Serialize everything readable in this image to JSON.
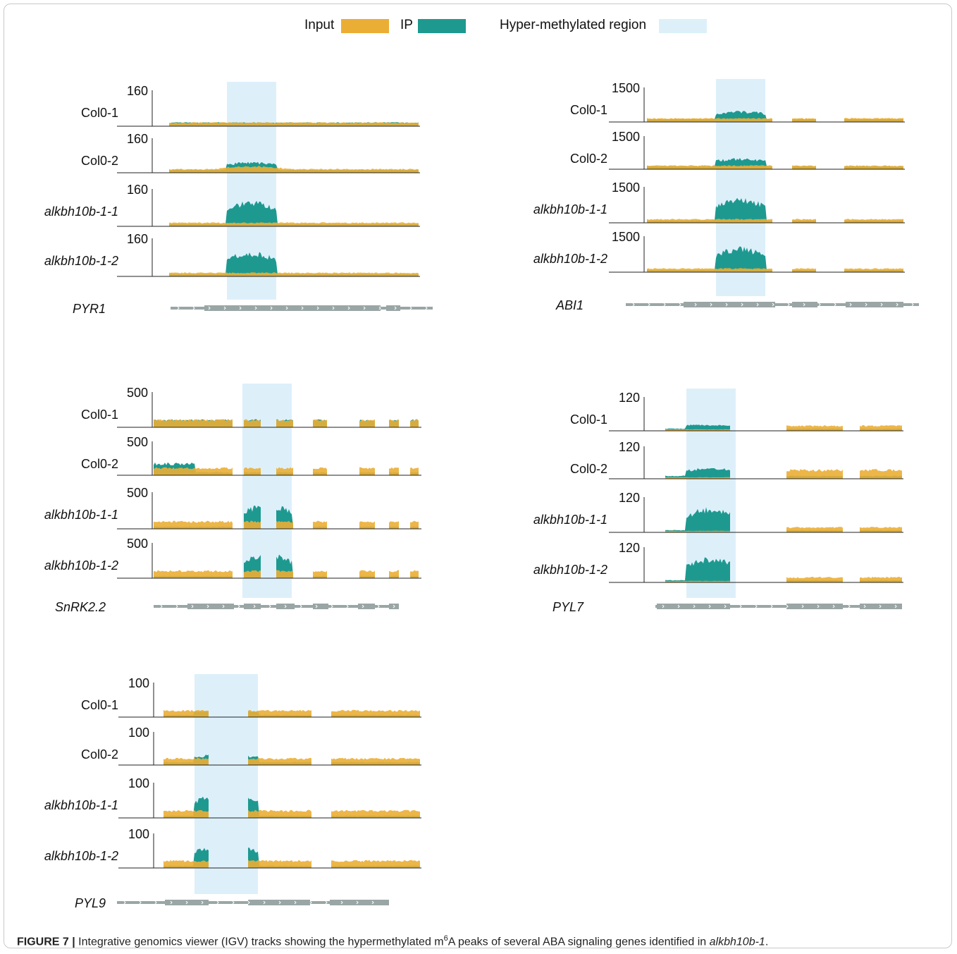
{
  "legend": {
    "input_label": "Input",
    "ip_label": "IP",
    "region_label": "Hyper-methylated region"
  },
  "colors": {
    "input": "#EBAE35",
    "ip": "#1E9990",
    "overlap": "#C9B06A",
    "region": "#DDF0FA",
    "gene_model": "#9AA6A5",
    "axis": "#222222"
  },
  "caption": {
    "figure_label": "FIGURE 7 |",
    "text_before_sup": "Integrative genomics viewer (IGV) tracks showing the hypermethylated m",
    "sup": "6",
    "text_after_sup": "A peaks of several ABA signaling genes identified in ",
    "gene_italic": "alkbh10b-1",
    "end": "."
  },
  "panels": [
    {
      "gene": "PYR1",
      "tracks": [
        {
          "label": "Col0-1",
          "italic": false,
          "ymax": "160",
          "input_profile": "low-flat",
          "ip_profile": "low-flat"
        },
        {
          "label": "Col0-2",
          "italic": false,
          "ymax": "160",
          "input_profile": "low-bump",
          "ip_profile": "moderate-in-region"
        },
        {
          "label": "alkbh10b-1-1",
          "italic": true,
          "ymax": "160",
          "input_profile": "low-flat",
          "ip_profile": "peak-in-region"
        },
        {
          "label": "alkbh10b-1-2",
          "italic": true,
          "ymax": "160",
          "input_profile": "low-flat",
          "ip_profile": "peak-in-region"
        }
      ]
    },
    {
      "gene": "ABI1",
      "tracks": [
        {
          "label": "Col0-1",
          "italic": false,
          "ymax": "1500",
          "input_profile": "low-flat",
          "ip_profile": "moderate-in-region"
        },
        {
          "label": "Col0-2",
          "italic": false,
          "ymax": "1500",
          "input_profile": "low-flat",
          "ip_profile": "moderate-in-region"
        },
        {
          "label": "alkbh10b-1-1",
          "italic": true,
          "ymax": "1500",
          "input_profile": "low-flat",
          "ip_profile": "peak-in-region"
        },
        {
          "label": "alkbh10b-1-2",
          "italic": true,
          "ymax": "1500",
          "input_profile": "low-flat",
          "ip_profile": "peak-in-region"
        }
      ]
    },
    {
      "gene": "SnRK2.2",
      "tracks": [
        {
          "label": "Col0-1",
          "italic": false,
          "ymax": "500",
          "input_profile": "low-exons",
          "ip_profile": "low-exons"
        },
        {
          "label": "Col0-2",
          "italic": false,
          "ymax": "500",
          "input_profile": "low-exons",
          "ip_profile": "high-5prime"
        },
        {
          "label": "alkbh10b-1-1",
          "italic": true,
          "ymax": "500",
          "input_profile": "low-exons",
          "ip_profile": "peak-in-region"
        },
        {
          "label": "alkbh10b-1-2",
          "italic": true,
          "ymax": "500",
          "input_profile": "low-exons",
          "ip_profile": "peak-in-region"
        }
      ]
    },
    {
      "gene": "PYL7",
      "tracks": [
        {
          "label": "Col0-1",
          "italic": false,
          "ymax": "120",
          "input_profile": "low-3prime",
          "ip_profile": "low-in-region"
        },
        {
          "label": "Col0-2",
          "italic": false,
          "ymax": "120",
          "input_profile": "moderate-3prime",
          "ip_profile": "moderate-in-region"
        },
        {
          "label": "alkbh10b-1-1",
          "italic": true,
          "ymax": "120",
          "input_profile": "low-3prime",
          "ip_profile": "peak-in-region"
        },
        {
          "label": "alkbh10b-1-2",
          "italic": true,
          "ymax": "120",
          "input_profile": "low-3prime",
          "ip_profile": "peak-in-region"
        }
      ]
    },
    {
      "gene": "PYL9",
      "tracks": [
        {
          "label": "Col0-1",
          "italic": false,
          "ymax": "100",
          "input_profile": "moderate-exons",
          "ip_profile": "low-in-region"
        },
        {
          "label": "Col0-2",
          "italic": false,
          "ymax": "100",
          "input_profile": "moderate-exons",
          "ip_profile": "moderate-in-region"
        },
        {
          "label": "alkbh10b-1-1",
          "italic": true,
          "ymax": "100",
          "input_profile": "low-exons",
          "ip_profile": "peak-in-region"
        },
        {
          "label": "alkbh10b-1-2",
          "italic": true,
          "ymax": "100",
          "input_profile": "low-exons",
          "ip_profile": "peak-in-region"
        }
      ]
    }
  ]
}
